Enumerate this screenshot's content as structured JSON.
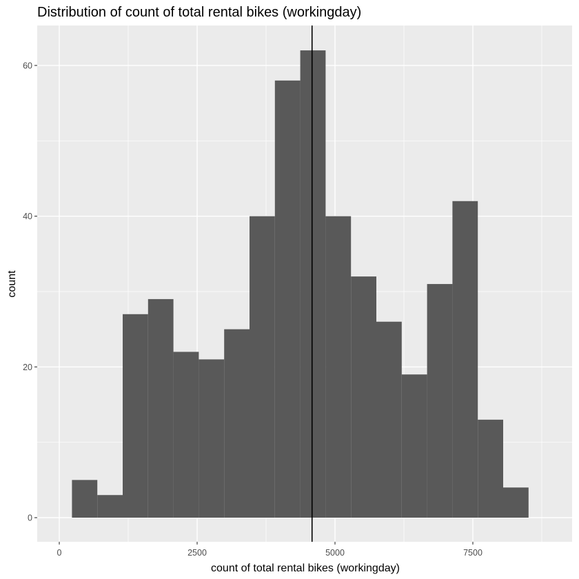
{
  "chart_data": {
    "type": "bar",
    "title": "Distribution of count of total rental bikes (workingday)",
    "xlabel": "count of total rental bikes (workingday)",
    "ylabel": "count",
    "xlim": [
      -400,
      9300
    ],
    "ylim": [
      -3.2,
      65.3
    ],
    "x_ticks": [
      0,
      2500,
      5000,
      7500
    ],
    "x_tick_labels": [
      "0",
      "2500",
      "5000",
      "7500"
    ],
    "y_ticks": [
      0,
      20,
      40,
      60
    ],
    "y_tick_labels": [
      "0",
      "20",
      "40",
      "60"
    ],
    "bin_width": 460,
    "bins": [
      {
        "x0": 230,
        "count": 5
      },
      {
        "x0": 690,
        "count": 3
      },
      {
        "x0": 1150,
        "count": 27
      },
      {
        "x0": 1610,
        "count": 29
      },
      {
        "x0": 2070,
        "count": 22
      },
      {
        "x0": 2530,
        "count": 21
      },
      {
        "x0": 2990,
        "count": 25
      },
      {
        "x0": 3450,
        "count": 40
      },
      {
        "x0": 3910,
        "count": 58
      },
      {
        "x0": 4370,
        "count": 62
      },
      {
        "x0": 4830,
        "count": 40
      },
      {
        "x0": 5290,
        "count": 32
      },
      {
        "x0": 5750,
        "count": 26
      },
      {
        "x0": 6210,
        "count": 19
      },
      {
        "x0": 6670,
        "count": 31
      },
      {
        "x0": 7130,
        "count": 42
      },
      {
        "x0": 7590,
        "count": 13
      },
      {
        "x0": 8050,
        "count": 4
      }
    ],
    "vline": {
      "x": 4584
    },
    "grid": true,
    "colors": {
      "panel": "#ebebeb",
      "grid": "#ffffff",
      "bar": "#595959",
      "vline": "#000000"
    }
  }
}
